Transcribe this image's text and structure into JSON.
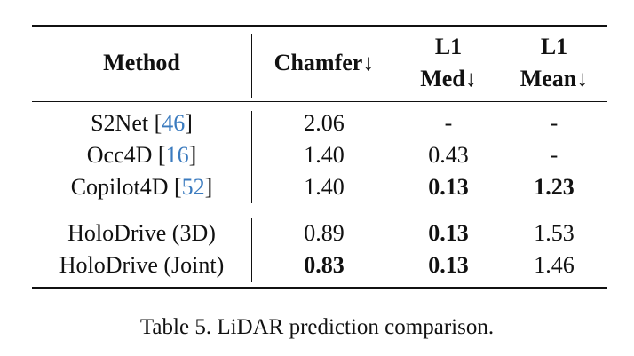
{
  "table": {
    "headers": {
      "method": "Method",
      "chamfer": "Chamfer↓",
      "l1_med": [
        "L1",
        "Med↓"
      ],
      "l1_mean": [
        "L1",
        "Mean↓"
      ]
    },
    "group1": [
      {
        "method": "S2Net [",
        "ref": "46",
        "close": "]",
        "chamfer": "2.06",
        "l1_med": "-",
        "l1_mean": "-"
      },
      {
        "method": "Occ4D [",
        "ref": "16",
        "close": "]",
        "chamfer": "1.40",
        "l1_med": "0.43",
        "l1_mean": "-"
      },
      {
        "method": "Copilot4D [",
        "ref": "52",
        "close": "]",
        "chamfer": "1.40",
        "l1_med": "0.13",
        "l1_mean": "1.23"
      }
    ],
    "group2": [
      {
        "method": "HoloDrive (3D)",
        "chamfer": "0.89",
        "l1_med": "0.13",
        "l1_mean": "1.53"
      },
      {
        "method": "HoloDrive (Joint)",
        "chamfer": "0.83",
        "l1_med": "0.13",
        "l1_mean": "1.46"
      }
    ]
  },
  "caption": "Table 5. LiDAR prediction comparison."
}
